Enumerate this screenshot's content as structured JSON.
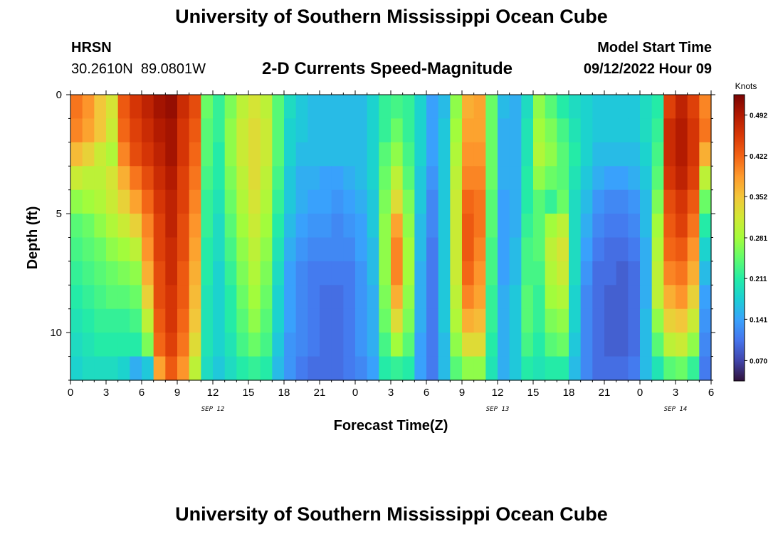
{
  "header": {
    "title": "University of Southern Mississippi Ocean Cube",
    "station": "HRSN",
    "coords": "30.2610N  89.0801W",
    "subtitle": "2-D Currents Speed-Magnitude",
    "model_label": "Model Start Time",
    "model_time": "09/12/2022 Hour 09",
    "footer_title": "University of Southern Mississippi Ocean Cube"
  },
  "chart_data": {
    "type": "heatmap",
    "title": "2-D Currents Speed-Magnitude",
    "xlabel": "Forecast Time(Z)",
    "ylabel": "Depth (ft)",
    "xlim": [
      0,
      54
    ],
    "ylim": [
      0,
      12
    ],
    "x_ticks": [
      {
        "v": 0,
        "label": "0"
      },
      {
        "v": 3,
        "label": "3"
      },
      {
        "v": 6,
        "label": "6"
      },
      {
        "v": 9,
        "label": "9"
      },
      {
        "v": 12,
        "label": "12"
      },
      {
        "v": 15,
        "label": "15"
      },
      {
        "v": 18,
        "label": "18"
      },
      {
        "v": 21,
        "label": "21"
      },
      {
        "v": 24,
        "label": "0"
      },
      {
        "v": 27,
        "label": "3"
      },
      {
        "v": 30,
        "label": "6"
      },
      {
        "v": 33,
        "label": "9"
      },
      {
        "v": 36,
        "label": "12"
      },
      {
        "v": 39,
        "label": "15"
      },
      {
        "v": 42,
        "label": "18"
      },
      {
        "v": 45,
        "label": "21"
      },
      {
        "v": 48,
        "label": "0"
      },
      {
        "v": 51,
        "label": "3"
      },
      {
        "v": 54,
        "label": "6"
      }
    ],
    "date_labels": [
      {
        "v": 12,
        "label": "SEP 12"
      },
      {
        "v": 36,
        "label": "SEP 13"
      },
      {
        "v": 51,
        "label": "SEP 14"
      }
    ],
    "y_ticks": [
      {
        "v": 0,
        "label": "0"
      },
      {
        "v": 5,
        "label": "5"
      },
      {
        "v": 10,
        "label": "10"
      }
    ],
    "colorbar": {
      "label": "Knots",
      "min": 0.035,
      "max": 0.527,
      "ticks": [
        "0.070",
        "0.141",
        "0.211",
        "0.281",
        "0.352",
        "0.422",
        "0.492"
      ],
      "colors": [
        "#30123b",
        "#4145ab",
        "#4675ed",
        "#39a2fc",
        "#1bcfd4",
        "#24eca6",
        "#61fc6c",
        "#a4fc3b",
        "#d1e834",
        "#f3c63a",
        "#fe9b2d",
        "#f36315",
        "#d93806",
        "#b11901",
        "#7a0403"
      ]
    },
    "depths": [
      0,
      1,
      2,
      3,
      4,
      5,
      6,
      7,
      8,
      9,
      10,
      11
    ],
    "hours": [
      0,
      1,
      2,
      3,
      4,
      5,
      6,
      7,
      8,
      9,
      10,
      11,
      12,
      13,
      14,
      15,
      16,
      17,
      18,
      19,
      20,
      21,
      22,
      23,
      24,
      25,
      26,
      27,
      28,
      29,
      30,
      31,
      32,
      33,
      34,
      35,
      36,
      37,
      38,
      39,
      40,
      41,
      42,
      43,
      44,
      45,
      46,
      47,
      48,
      49,
      50,
      51,
      52,
      53
    ],
    "values": [
      [
        0.41,
        0.39,
        0.35,
        0.32,
        0.43,
        0.46,
        0.48,
        0.5,
        0.51,
        0.47,
        0.44,
        0.25,
        0.22,
        0.26,
        0.3,
        0.32,
        0.3,
        0.24,
        0.19,
        0.17,
        0.16,
        0.16,
        0.16,
        0.16,
        0.16,
        0.18,
        0.22,
        0.23,
        0.22,
        0.18,
        0.14,
        0.16,
        0.27,
        0.37,
        0.38,
        0.25,
        0.16,
        0.15,
        0.19,
        0.27,
        0.24,
        0.21,
        0.19,
        0.18,
        0.17,
        0.17,
        0.17,
        0.17,
        0.19,
        0.21,
        0.45,
        0.48,
        0.45,
        0.4
      ],
      [
        0.4,
        0.38,
        0.35,
        0.31,
        0.42,
        0.45,
        0.47,
        0.49,
        0.5,
        0.46,
        0.43,
        0.24,
        0.22,
        0.27,
        0.31,
        0.33,
        0.31,
        0.24,
        0.18,
        0.17,
        0.16,
        0.16,
        0.16,
        0.16,
        0.16,
        0.18,
        0.22,
        0.25,
        0.22,
        0.18,
        0.14,
        0.17,
        0.28,
        0.38,
        0.38,
        0.25,
        0.15,
        0.15,
        0.2,
        0.28,
        0.26,
        0.23,
        0.2,
        0.18,
        0.17,
        0.17,
        0.17,
        0.17,
        0.19,
        0.22,
        0.47,
        0.49,
        0.46,
        0.41
      ],
      [
        0.36,
        0.34,
        0.31,
        0.29,
        0.4,
        0.44,
        0.46,
        0.48,
        0.5,
        0.46,
        0.42,
        0.24,
        0.21,
        0.27,
        0.31,
        0.33,
        0.31,
        0.24,
        0.18,
        0.16,
        0.16,
        0.16,
        0.16,
        0.16,
        0.16,
        0.18,
        0.24,
        0.27,
        0.23,
        0.18,
        0.14,
        0.17,
        0.29,
        0.39,
        0.39,
        0.25,
        0.15,
        0.15,
        0.2,
        0.29,
        0.27,
        0.24,
        0.21,
        0.18,
        0.16,
        0.16,
        0.16,
        0.16,
        0.18,
        0.23,
        0.47,
        0.49,
        0.46,
        0.37
      ],
      [
        0.31,
        0.3,
        0.3,
        0.32,
        0.37,
        0.41,
        0.44,
        0.47,
        0.49,
        0.45,
        0.41,
        0.23,
        0.21,
        0.26,
        0.3,
        0.33,
        0.3,
        0.23,
        0.17,
        0.15,
        0.15,
        0.14,
        0.14,
        0.15,
        0.16,
        0.18,
        0.25,
        0.3,
        0.24,
        0.17,
        0.13,
        0.17,
        0.3,
        0.4,
        0.4,
        0.25,
        0.15,
        0.15,
        0.21,
        0.27,
        0.25,
        0.24,
        0.2,
        0.17,
        0.15,
        0.14,
        0.14,
        0.15,
        0.17,
        0.24,
        0.46,
        0.48,
        0.45,
        0.3
      ],
      [
        0.27,
        0.28,
        0.29,
        0.31,
        0.34,
        0.38,
        0.42,
        0.46,
        0.48,
        0.45,
        0.4,
        0.22,
        0.2,
        0.25,
        0.29,
        0.32,
        0.29,
        0.22,
        0.17,
        0.15,
        0.14,
        0.14,
        0.13,
        0.14,
        0.15,
        0.17,
        0.26,
        0.33,
        0.26,
        0.17,
        0.12,
        0.17,
        0.31,
        0.42,
        0.41,
        0.24,
        0.14,
        0.15,
        0.21,
        0.24,
        0.22,
        0.25,
        0.19,
        0.16,
        0.13,
        0.12,
        0.12,
        0.13,
        0.16,
        0.26,
        0.44,
        0.46,
        0.43,
        0.25
      ],
      [
        0.24,
        0.25,
        0.27,
        0.29,
        0.31,
        0.34,
        0.4,
        0.45,
        0.48,
        0.44,
        0.39,
        0.22,
        0.19,
        0.24,
        0.28,
        0.31,
        0.28,
        0.21,
        0.16,
        0.14,
        0.13,
        0.13,
        0.12,
        0.13,
        0.14,
        0.17,
        0.27,
        0.38,
        0.27,
        0.16,
        0.12,
        0.17,
        0.31,
        0.43,
        0.41,
        0.24,
        0.14,
        0.15,
        0.22,
        0.24,
        0.28,
        0.3,
        0.19,
        0.15,
        0.12,
        0.11,
        0.11,
        0.12,
        0.16,
        0.28,
        0.43,
        0.45,
        0.41,
        0.21
      ],
      [
        0.23,
        0.24,
        0.25,
        0.27,
        0.28,
        0.3,
        0.39,
        0.45,
        0.47,
        0.44,
        0.38,
        0.21,
        0.19,
        0.23,
        0.27,
        0.3,
        0.27,
        0.2,
        0.15,
        0.13,
        0.12,
        0.12,
        0.12,
        0.12,
        0.14,
        0.16,
        0.27,
        0.4,
        0.28,
        0.16,
        0.11,
        0.17,
        0.31,
        0.43,
        0.4,
        0.23,
        0.14,
        0.16,
        0.23,
        0.24,
        0.3,
        0.32,
        0.19,
        0.14,
        0.11,
        0.1,
        0.1,
        0.11,
        0.15,
        0.29,
        0.42,
        0.43,
        0.39,
        0.18
      ],
      [
        0.22,
        0.23,
        0.24,
        0.25,
        0.26,
        0.27,
        0.37,
        0.44,
        0.47,
        0.43,
        0.37,
        0.21,
        0.18,
        0.22,
        0.26,
        0.29,
        0.26,
        0.19,
        0.14,
        0.12,
        0.11,
        0.11,
        0.11,
        0.11,
        0.13,
        0.16,
        0.27,
        0.4,
        0.28,
        0.15,
        0.11,
        0.17,
        0.31,
        0.42,
        0.39,
        0.23,
        0.14,
        0.16,
        0.23,
        0.23,
        0.29,
        0.31,
        0.19,
        0.13,
        0.1,
        0.1,
        0.09,
        0.1,
        0.15,
        0.3,
        0.4,
        0.41,
        0.37,
        0.16
      ],
      [
        0.21,
        0.22,
        0.23,
        0.24,
        0.24,
        0.25,
        0.34,
        0.44,
        0.46,
        0.43,
        0.36,
        0.2,
        0.18,
        0.21,
        0.25,
        0.28,
        0.25,
        0.18,
        0.14,
        0.12,
        0.11,
        0.1,
        0.1,
        0.11,
        0.13,
        0.15,
        0.26,
        0.37,
        0.27,
        0.15,
        0.11,
        0.17,
        0.3,
        0.4,
        0.38,
        0.22,
        0.15,
        0.17,
        0.24,
        0.22,
        0.28,
        0.29,
        0.18,
        0.12,
        0.1,
        0.09,
        0.09,
        0.1,
        0.15,
        0.3,
        0.37,
        0.39,
        0.34,
        0.14
      ],
      [
        0.2,
        0.21,
        0.22,
        0.22,
        0.22,
        0.23,
        0.3,
        0.43,
        0.46,
        0.42,
        0.35,
        0.2,
        0.18,
        0.21,
        0.24,
        0.27,
        0.24,
        0.18,
        0.14,
        0.12,
        0.11,
        0.1,
        0.1,
        0.11,
        0.13,
        0.15,
        0.25,
        0.33,
        0.26,
        0.15,
        0.11,
        0.17,
        0.29,
        0.37,
        0.36,
        0.22,
        0.15,
        0.17,
        0.24,
        0.22,
        0.26,
        0.27,
        0.18,
        0.12,
        0.1,
        0.09,
        0.09,
        0.1,
        0.16,
        0.27,
        0.34,
        0.35,
        0.31,
        0.13
      ],
      [
        0.19,
        0.2,
        0.21,
        0.21,
        0.21,
        0.21,
        0.26,
        0.42,
        0.45,
        0.41,
        0.33,
        0.2,
        0.18,
        0.2,
        0.23,
        0.25,
        0.23,
        0.17,
        0.13,
        0.12,
        0.11,
        0.1,
        0.1,
        0.11,
        0.13,
        0.15,
        0.23,
        0.28,
        0.24,
        0.14,
        0.11,
        0.16,
        0.27,
        0.33,
        0.33,
        0.21,
        0.15,
        0.17,
        0.23,
        0.21,
        0.24,
        0.25,
        0.17,
        0.12,
        0.1,
        0.09,
        0.09,
        0.1,
        0.16,
        0.24,
        0.3,
        0.31,
        0.27,
        0.12
      ],
      [
        0.18,
        0.19,
        0.19,
        0.19,
        0.18,
        0.15,
        0.17,
        0.38,
        0.43,
        0.39,
        0.3,
        0.19,
        0.17,
        0.19,
        0.21,
        0.22,
        0.21,
        0.16,
        0.13,
        0.11,
        0.1,
        0.1,
        0.1,
        0.11,
        0.12,
        0.14,
        0.21,
        0.22,
        0.21,
        0.14,
        0.11,
        0.16,
        0.24,
        0.27,
        0.27,
        0.2,
        0.15,
        0.17,
        0.21,
        0.2,
        0.21,
        0.21,
        0.16,
        0.12,
        0.1,
        0.1,
        0.1,
        0.11,
        0.16,
        0.2,
        0.24,
        0.25,
        0.22,
        0.11
      ]
    ]
  }
}
